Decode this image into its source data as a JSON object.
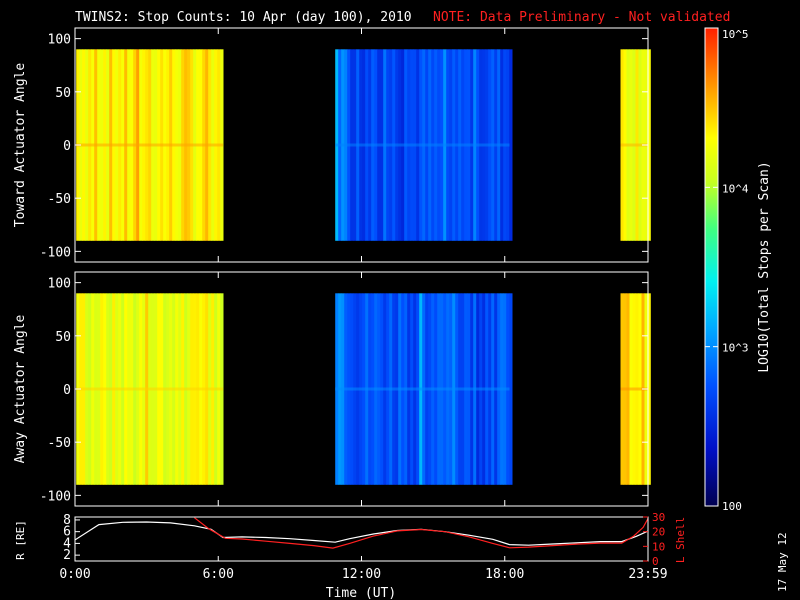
{
  "title": {
    "main": "TWINS2: Stop Counts: 10 Apr (day 100), 2010",
    "note": "NOTE: Data Preliminary - Not validated"
  },
  "colors": {
    "note": "#ff2020",
    "r_line": "#ffffff",
    "lshell_line": "#ff2020"
  },
  "colorbar": {
    "label": "LOG10(Total Stops per Scan)",
    "range": [
      100,
      100000
    ],
    "scale": "log",
    "tick_labels": [
      "100",
      "10^3",
      "10^4",
      "10^5"
    ],
    "tick_values": [
      100,
      1000,
      10000,
      100000
    ]
  },
  "date_stamp": "17 May 12",
  "chart_data": [
    {
      "type": "heatmap",
      "name": "toward",
      "ylabel": "Toward Actuator Angle",
      "xlim": [
        0,
        24
      ],
      "ylim": [
        -110,
        110
      ],
      "yticks": [
        100,
        50,
        0,
        -50,
        -100
      ],
      "data_angle_range": [
        -90,
        90
      ],
      "segments": [
        {
          "start": 0.05,
          "end": 6.2,
          "level": 4.35
        },
        {
          "start": 10.9,
          "end": 18.2,
          "level": 2.7
        },
        {
          "start": 22.85,
          "end": 24.0,
          "level": 4.3
        }
      ]
    },
    {
      "type": "heatmap",
      "name": "away",
      "ylabel": "Away Actuator Angle",
      "xlim": [
        0,
        24
      ],
      "ylim": [
        -110,
        110
      ],
      "yticks": [
        100,
        50,
        0,
        -50,
        -100
      ],
      "data_angle_range": [
        -90,
        90
      ],
      "segments": [
        {
          "start": 0.05,
          "end": 6.2,
          "level": 4.2
        },
        {
          "start": 10.9,
          "end": 18.2,
          "level": 2.75
        },
        {
          "start": 22.85,
          "end": 24.0,
          "level": 4.4
        }
      ]
    },
    {
      "type": "line",
      "name": "orbit",
      "xlabel": "Time (UT)",
      "xlim": [
        0,
        24
      ],
      "xtick_labels": [
        "0:00",
        "6:00",
        "12:00",
        "18:00",
        "23:59"
      ],
      "xtick_values": [
        0,
        6,
        12,
        18,
        24
      ],
      "ylabel_left": "R [RE]",
      "ylim_left": [
        1,
        8.5
      ],
      "yticks_left": [
        2,
        4,
        6,
        8
      ],
      "ylabel_right": "L Shell",
      "ylim_right": [
        0,
        30
      ],
      "yticks_right": [
        0,
        10,
        20,
        30
      ],
      "series": [
        {
          "axis": "left",
          "x": [
            0,
            1,
            2,
            3,
            4,
            5,
            5.7,
            6.2,
            7,
            8,
            9,
            10,
            10.9,
            11.5,
            12.5,
            13.5,
            14.5,
            15.5,
            16.5,
            17.5,
            18.2,
            19,
            20,
            21,
            22,
            22.9,
            23.5,
            24
          ],
          "y": [
            4.6,
            7.2,
            7.6,
            7.65,
            7.5,
            7.0,
            6.4,
            5.0,
            5.1,
            5.0,
            4.8,
            4.5,
            4.2,
            4.8,
            5.6,
            6.2,
            6.4,
            6.0,
            5.4,
            4.7,
            3.8,
            3.7,
            3.9,
            4.1,
            4.3,
            4.3,
            5.2,
            6.1
          ]
        },
        {
          "axis": "right",
          "x": [
            5.0,
            5.6,
            6.3,
            7,
            8,
            9,
            10,
            10.8,
            11.5,
            12.5,
            13.5,
            14.5,
            15.5,
            16.5,
            17.5,
            18.2,
            19,
            20,
            21,
            22,
            22.9,
            23.4,
            23.8,
            24
          ],
          "y": [
            29.5,
            22,
            15.5,
            15.0,
            13.5,
            12.0,
            10.5,
            8.8,
            12,
            17,
            20.5,
            21.5,
            20,
            16.5,
            12,
            9.0,
            9.5,
            10.5,
            11.5,
            12.2,
            12.2,
            17,
            23,
            29
          ]
        }
      ]
    }
  ]
}
